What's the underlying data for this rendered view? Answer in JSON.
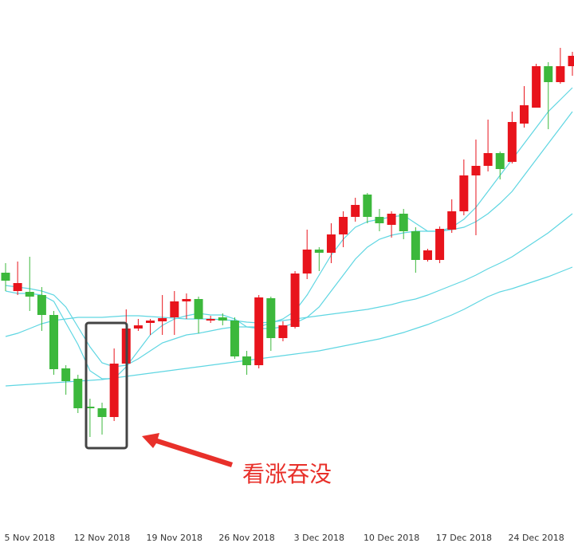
{
  "chart_data": {
    "type": "candlestick",
    "categories": [
      null,
      null,
      "5 Nov 2018",
      null,
      null,
      null,
      null,
      null,
      "12 Nov 2018",
      null,
      null,
      null,
      null,
      null,
      "19 Nov 2018",
      null,
      null,
      null,
      null,
      null,
      "26 Nov 2018",
      null,
      null,
      null,
      null,
      null,
      "3 Dec 2018",
      null,
      null,
      null,
      null,
      null,
      "10 Dec 2018",
      null,
      null,
      null,
      null,
      null,
      "17 Dec 2018",
      null,
      null,
      null,
      null,
      null,
      "24 Dec 2018",
      null,
      null,
      null
    ],
    "open": [
      318,
      295,
      294,
      290,
      265,
      198,
      185,
      150,
      148,
      137,
      204,
      248,
      255,
      257,
      262,
      282,
      285,
      258,
      262,
      258,
      213,
      202,
      286,
      236,
      250,
      317,
      347,
      343,
      366,
      388,
      416,
      388,
      378,
      392,
      370,
      334,
      334,
      372,
      395,
      440,
      452,
      468,
      457,
      505,
      525,
      577,
      557,
      577
    ],
    "high": [
      330,
      332,
      338,
      300,
      270,
      202,
      190,
      160,
      155,
      223,
      272,
      260,
      260,
      290,
      295,
      292,
      288,
      264,
      267,
      262,
      220,
      290,
      288,
      257,
      320,
      372,
      350,
      380,
      395,
      412,
      418,
      398,
      395,
      398,
      375,
      348,
      376,
      410,
      460,
      485,
      510,
      470,
      520,
      552,
      580,
      582,
      600,
      595
    ],
    "low": [
      295,
      290,
      270,
      245,
      190,
      165,
      142,
      112,
      115,
      132,
      200,
      245,
      240,
      240,
      240,
      260,
      242,
      255,
      252,
      210,
      190,
      198,
      220,
      232,
      248,
      310,
      320,
      330,
      350,
      382,
      380,
      370,
      362,
      360,
      318,
      332,
      330,
      368,
      390,
      365,
      445,
      435,
      455,
      500,
      525,
      498,
      555,
      565
    ],
    "close": [
      308,
      305,
      288,
      265,
      197,
      182,
      148,
      148,
      137,
      204,
      248,
      252,
      258,
      261,
      282,
      285,
      260,
      260,
      258,
      213,
      202,
      287,
      236,
      252,
      317,
      347,
      343,
      366,
      388,
      403,
      388,
      380,
      392,
      370,
      334,
      346,
      373,
      395,
      440,
      452,
      468,
      448,
      507,
      528,
      577,
      557,
      577,
      590
    ],
    "up_color": "#e8141c",
    "down_color": "#3cb83c",
    "lines": [
      {
        "color": "#5fd6e2",
        "values": [
          295,
          292,
          292,
          290,
          282,
          255,
          228,
          195,
          185,
          185,
          200,
          220,
          240,
          252,
          260,
          264,
          267,
          265,
          265,
          260,
          250,
          250,
          255,
          260,
          270,
          290,
          315,
          340,
          360,
          375,
          382,
          385,
          388,
          390,
          380,
          370,
          370,
          375,
          385,
          400,
          420,
          440,
          460,
          480,
          500,
          520,
          535,
          550
        ]
      },
      {
        "color": "#5fd6e2",
        "values": [
          302,
          300,
          298,
          295,
          290,
          275,
          250,
          225,
          205,
          200,
          202,
          210,
          220,
          230,
          235,
          240,
          242,
          245,
          248,
          250,
          250,
          248,
          248,
          250,
          255,
          262,
          275,
          295,
          315,
          335,
          350,
          360,
          365,
          368,
          370,
          370,
          370,
          372,
          375,
          382,
          392,
          405,
          420,
          440,
          460,
          480,
          500,
          520
        ]
      },
      {
        "color": "#5fd6e2",
        "values": [
          238,
          242,
          248,
          254,
          258,
          260,
          262,
          262,
          262,
          263,
          264,
          264,
          263,
          262,
          261,
          260,
          260,
          260,
          259,
          258,
          256,
          255,
          256,
          258,
          260,
          262,
          264,
          266,
          268,
          270,
          272,
          275,
          278,
          282,
          285,
          290,
          296,
          302,
          308,
          315,
          323,
          330,
          338,
          348,
          358,
          368,
          380,
          392
        ]
      },
      {
        "color": "#5fd6e2",
        "values": [
          176,
          177,
          178,
          179,
          180,
          181,
          182,
          183,
          184,
          186,
          188,
          190,
          192,
          194,
          196,
          198,
          200,
          202,
          204,
          206,
          208,
          210,
          212,
          214,
          216,
          218,
          220,
          223,
          226,
          229,
          232,
          235,
          239,
          243,
          248,
          253,
          259,
          265,
          272,
          280,
          288,
          294,
          298,
          303,
          308,
          313,
          319,
          325
        ]
      }
    ],
    "ylim": [
      0,
      660
    ],
    "annotation": "看涨吞没"
  }
}
